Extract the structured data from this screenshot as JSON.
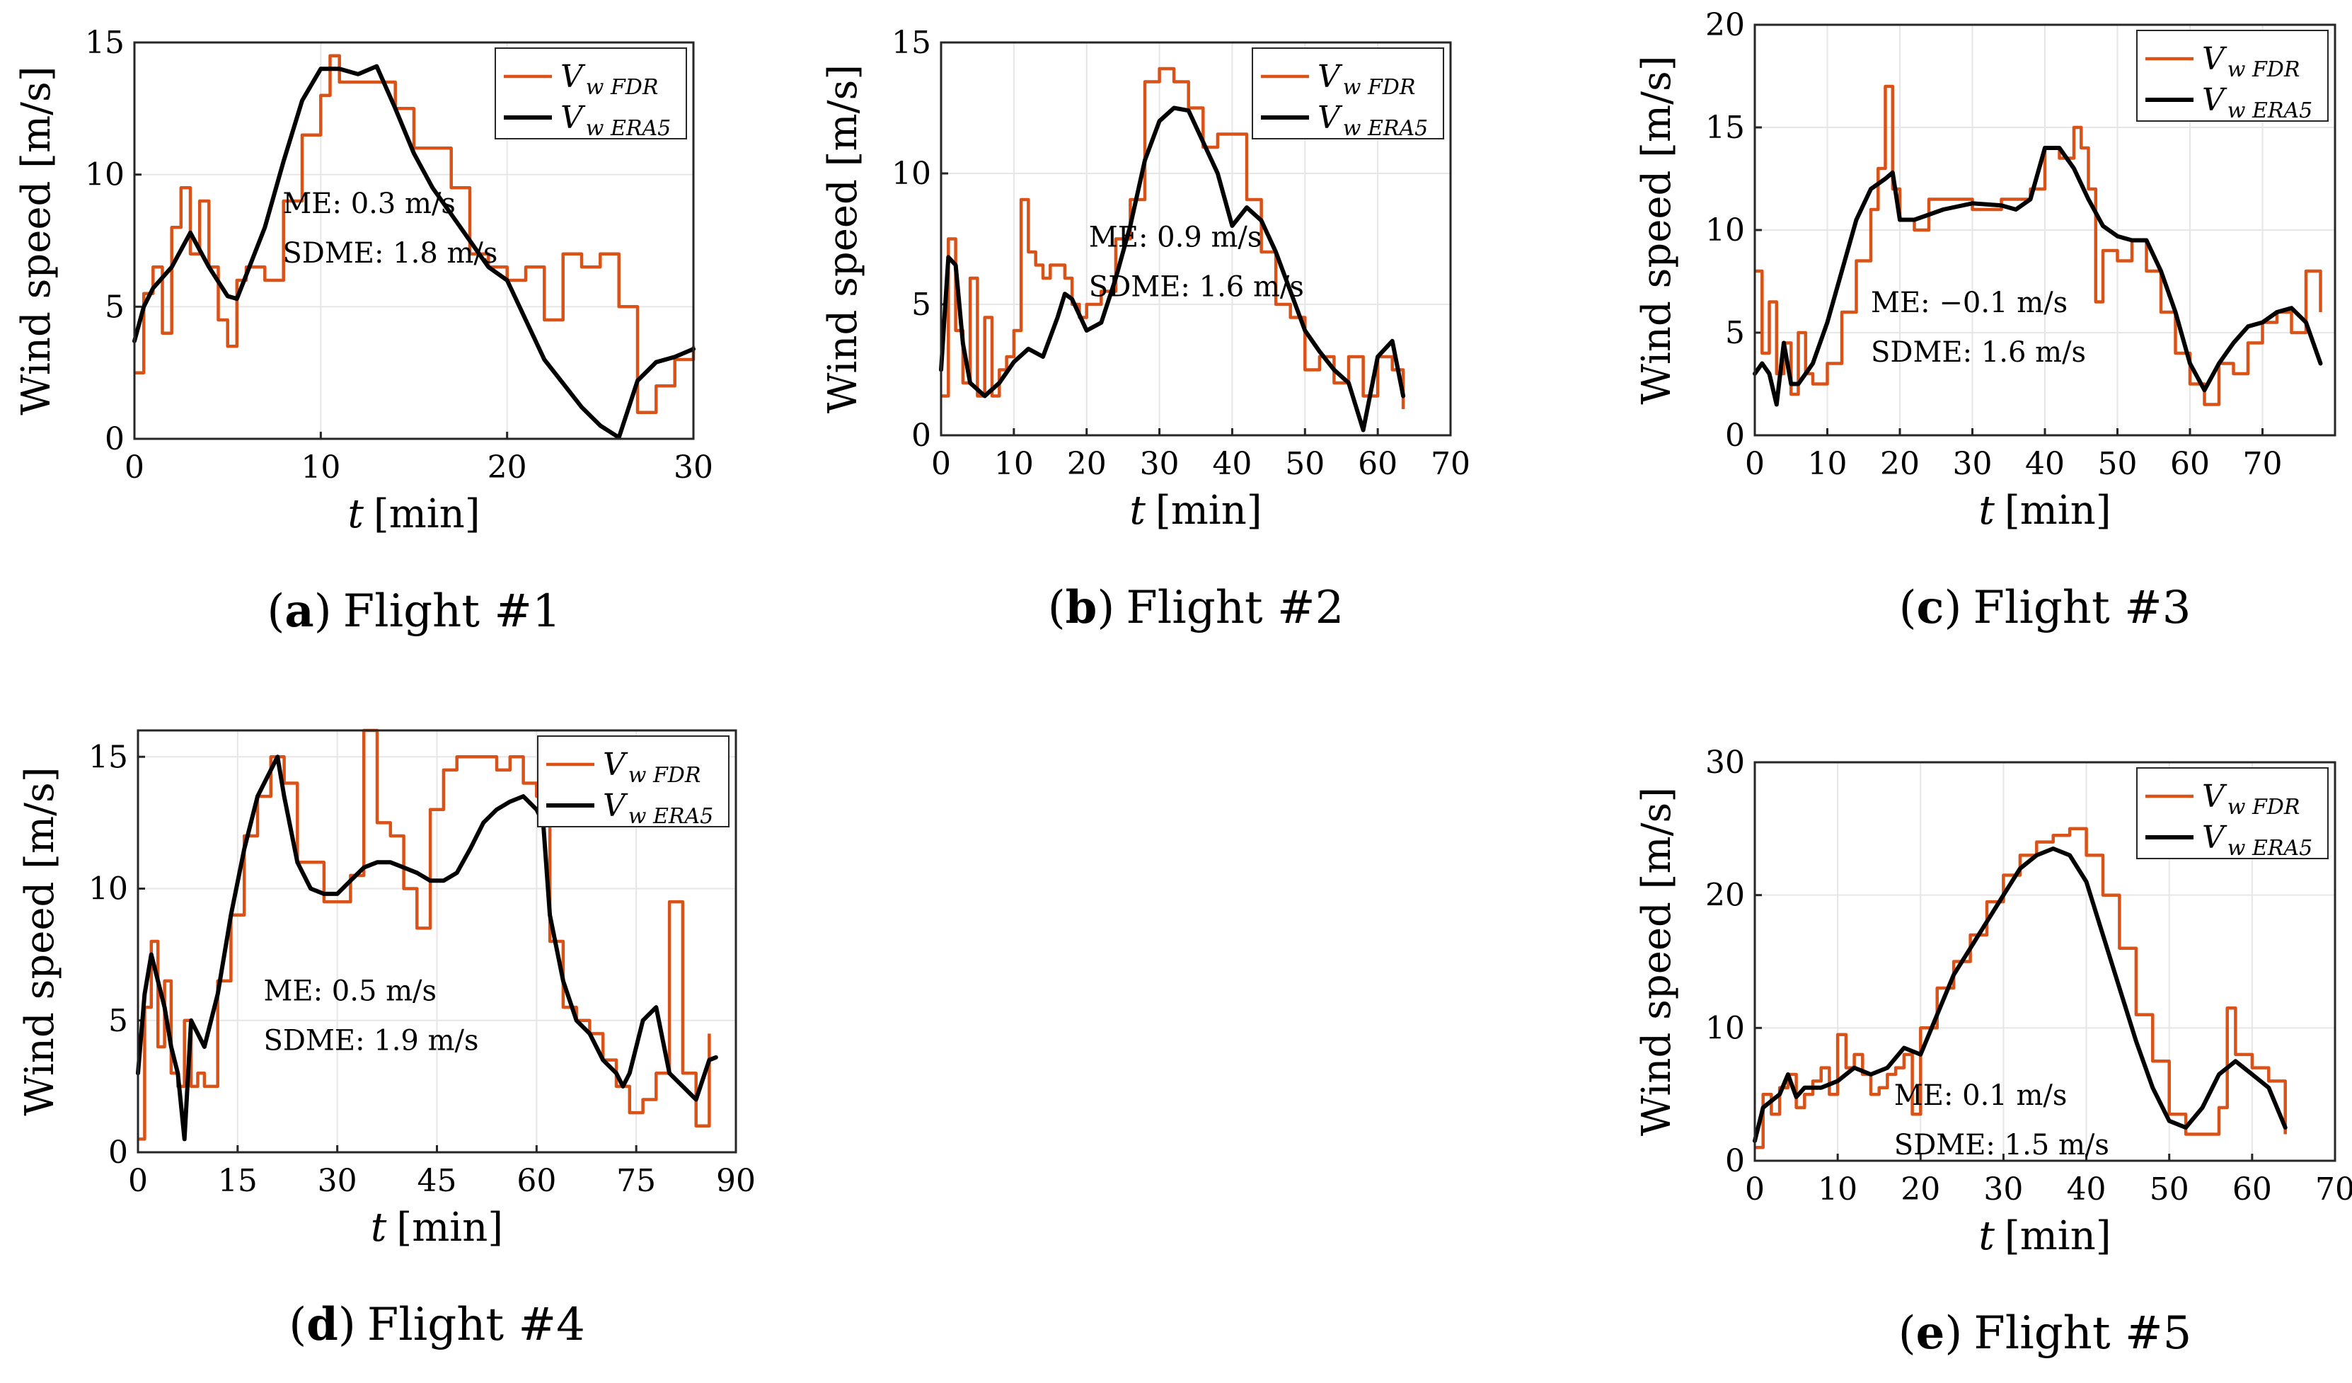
{
  "chart_data": [
    {
      "type": "line",
      "caption_letter": "(a)",
      "caption_text": "Flight #1",
      "xlabel_var": "t",
      "xlabel_unit": "[min]",
      "ylabel": "Wind speed [m/s]",
      "xlim": [
        0,
        30
      ],
      "ylim": [
        0,
        15
      ],
      "xticks": [
        "0",
        "10",
        "20",
        "30"
      ],
      "yticks": [
        "0",
        "5",
        "10",
        "15"
      ],
      "legend": {
        "fdr": "V",
        "fdr_sub": "w FDR",
        "era": "V",
        "era_sub": "w ERA5"
      },
      "stats": {
        "me": "ME: 0.3 m/s",
        "sdme": "SDME: 1.8 m/s"
      },
      "series": [
        {
          "name": "V_w FDR",
          "color": "#D95319",
          "x": [
            0,
            0.5,
            1,
            1.5,
            2,
            2.5,
            3,
            3.5,
            4,
            4.5,
            5,
            5.5,
            6,
            7,
            8,
            9,
            10,
            10.5,
            11,
            12,
            13,
            14,
            15,
            16,
            17,
            18,
            19,
            20,
            21,
            22,
            23,
            24,
            25,
            26,
            27,
            28,
            29,
            30
          ],
          "y": [
            2.5,
            5.5,
            6.5,
            4,
            8,
            9.5,
            7,
            9,
            6.5,
            4.5,
            3.5,
            6,
            6.5,
            6,
            9,
            11.5,
            13,
            14.5,
            13.5,
            13.5,
            13.5,
            12.5,
            11,
            11,
            9.5,
            7,
            6.5,
            6,
            6.5,
            4.5,
            7,
            6.5,
            7,
            5,
            1,
            2,
            3,
            3.5
          ]
        },
        {
          "name": "V_w ERA5",
          "color": "#000000",
          "x": [
            0,
            0.5,
            1,
            2,
            3,
            4,
            5,
            5.5,
            6,
            7,
            8,
            9,
            10,
            11,
            12,
            13,
            14,
            15,
            16,
            17,
            18,
            19,
            20,
            21,
            22,
            23,
            24,
            25,
            26,
            27,
            28,
            29,
            30
          ],
          "y": [
            3.7,
            5,
            5.7,
            6.5,
            7.8,
            6.5,
            5.4,
            5.3,
            6.2,
            8,
            10.5,
            12.8,
            14,
            14,
            13.8,
            14.1,
            12.5,
            10.8,
            9.5,
            8.5,
            7.5,
            6.5,
            6,
            4.5,
            3,
            2.1,
            1.2,
            0.5,
            0.05,
            2.2,
            2.9,
            3.1,
            3.4
          ]
        }
      ]
    },
    {
      "type": "line",
      "caption_letter": "(b)",
      "caption_text": "Flight #2",
      "xlabel_var": "t",
      "xlabel_unit": "[min]",
      "ylabel": "Wind speed [m/s]",
      "xlim": [
        0,
        70
      ],
      "ylim": [
        0,
        15
      ],
      "xticks": [
        "0",
        "10",
        "20",
        "30",
        "40",
        "50",
        "60",
        "70"
      ],
      "yticks": [
        "0",
        "5",
        "10",
        "15"
      ],
      "legend": {
        "fdr": "V",
        "fdr_sub": "w FDR",
        "era": "V",
        "era_sub": "w ERA5"
      },
      "stats": {
        "me": "ME: 0.9 m/s",
        "sdme": "SDME: 1.6 m/s"
      },
      "series": [
        {
          "name": "V_w FDR",
          "color": "#D95319",
          "x": [
            0,
            1,
            2,
            3,
            4,
            5,
            6,
            7,
            8,
            9,
            10,
            11,
            12,
            13,
            14,
            15,
            16,
            17,
            18,
            19,
            20,
            22,
            24,
            26,
            28,
            30,
            32,
            34,
            36,
            38,
            40,
            42,
            44,
            46,
            48,
            50,
            52,
            54,
            56,
            58,
            60,
            62,
            63.5
          ],
          "y": [
            1.5,
            7.5,
            4,
            2,
            6,
            1.5,
            4.5,
            1.5,
            2.5,
            3,
            4,
            9,
            7,
            6.5,
            6,
            6.5,
            6.5,
            6,
            5,
            4.5,
            5,
            5.5,
            7.5,
            9,
            13.5,
            14,
            13.5,
            12.5,
            11,
            11.5,
            11.5,
            9,
            7,
            5,
            4.5,
            2.5,
            3,
            2,
            3,
            1.5,
            3,
            2.5,
            1
          ]
        },
        {
          "name": "V_w ERA5",
          "color": "#000000",
          "x": [
            0,
            1,
            2,
            3,
            4,
            6,
            8,
            10,
            12,
            14,
            16,
            17,
            18,
            20,
            22,
            24,
            26,
            28,
            30,
            32,
            34,
            36,
            38,
            40,
            42,
            44,
            46,
            48,
            50,
            52,
            54,
            56,
            58,
            60,
            62,
            63.5
          ],
          "y": [
            2.5,
            6.8,
            6.5,
            3.5,
            2,
            1.5,
            2,
            2.8,
            3.3,
            3,
            4.5,
            5.4,
            5.2,
            4,
            4.3,
            6,
            8,
            10.5,
            12,
            12.5,
            12.4,
            11.2,
            10,
            8,
            8.7,
            8.2,
            7,
            5.5,
            4,
            3.2,
            2.5,
            2,
            0.2,
            3,
            3.6,
            1.5
          ]
        }
      ]
    },
    {
      "type": "line",
      "caption_letter": "(c)",
      "caption_text": "Flight #3",
      "xlabel_var": "t",
      "xlabel_unit": "[min]",
      "ylabel": "Wind speed [m/s]",
      "xlim": [
        0,
        80
      ],
      "ylim": [
        0,
        20
      ],
      "xticks": [
        "0",
        "10",
        "20",
        "30",
        "40",
        "50",
        "60",
        "70"
      ],
      "yticks": [
        "0",
        "5",
        "10",
        "15",
        "20"
      ],
      "legend": {
        "fdr": "V",
        "fdr_sub": "w FDR",
        "era": "V",
        "era_sub": "w ERA5"
      },
      "stats": {
        "me": "ME: −0.1 m/s",
        "sdme": "SDME: 1.6 m/s"
      },
      "series": [
        {
          "name": "V_w FDR",
          "color": "#D95319",
          "x": [
            0,
            1,
            2,
            3,
            4,
            5,
            6,
            7,
            8,
            10,
            12,
            14,
            16,
            17,
            18,
            19,
            20,
            22,
            24,
            26,
            28,
            30,
            32,
            34,
            36,
            38,
            40,
            42,
            44,
            45,
            46,
            47,
            48,
            50,
            52,
            54,
            56,
            58,
            60,
            62,
            64,
            66,
            68,
            70,
            72,
            74,
            76,
            78
          ],
          "y": [
            8,
            4,
            6.5,
            3,
            4.5,
            2,
            5,
            3,
            2.5,
            3.5,
            6,
            8.5,
            11,
            13,
            17,
            12,
            10.5,
            10,
            11.5,
            11.5,
            11.5,
            11,
            11,
            11.5,
            11.5,
            12,
            14,
            13.5,
            15,
            14,
            12,
            6.5,
            9,
            8.5,
            9.5,
            8,
            6,
            4,
            2.5,
            1.5,
            3.5,
            3,
            4.5,
            5.5,
            6,
            5,
            8,
            6
          ]
        },
        {
          "name": "V_w ERA5",
          "color": "#000000",
          "x": [
            0,
            1,
            2,
            3,
            4,
            5,
            6,
            7,
            8,
            10,
            12,
            14,
            16,
            18,
            19,
            20,
            22,
            26,
            30,
            34,
            36,
            38,
            40,
            42,
            44,
            46,
            48,
            50,
            52,
            54,
            56,
            58,
            60,
            62,
            64,
            66,
            68,
            70,
            72,
            74,
            76,
            78
          ],
          "y": [
            3,
            3.5,
            3,
            1.5,
            4.5,
            2.5,
            2.5,
            3,
            3.5,
            5.5,
            8,
            10.5,
            12,
            12.5,
            12.8,
            10.5,
            10.5,
            11,
            11.3,
            11.2,
            11,
            11.5,
            14,
            14,
            13,
            11.5,
            10.2,
            9.7,
            9.5,
            9.5,
            8,
            6,
            3.5,
            2.2,
            3.5,
            4.5,
            5.3,
            5.5,
            6,
            6.2,
            5.5,
            3.5
          ]
        }
      ]
    },
    {
      "type": "line",
      "caption_letter": "(d)",
      "caption_text": "Flight #4",
      "xlabel_var": "t",
      "xlabel_unit": "[min]",
      "ylabel": "Wind speed [m/s]",
      "xlim": [
        0,
        90
      ],
      "ylim": [
        0,
        16
      ],
      "xticks": [
        "0",
        "15",
        "30",
        "45",
        "60",
        "75",
        "90"
      ],
      "yticks": [
        "0",
        "5",
        "10",
        "15"
      ],
      "legend": {
        "fdr": "V",
        "fdr_sub": "w FDR",
        "era": "V",
        "era_sub": "w ERA5"
      },
      "stats": {
        "me": "ME: 0.5 m/s",
        "sdme": "SDME: 1.9 m/s"
      },
      "series": [
        {
          "name": "V_w FDR",
          "color": "#D95319",
          "x": [
            0,
            1,
            2,
            3,
            4,
            5,
            6,
            7,
            8,
            9,
            10,
            12,
            14,
            16,
            18,
            20,
            22,
            24,
            26,
            28,
            30,
            32,
            34,
            36,
            38,
            40,
            42,
            44,
            46,
            48,
            50,
            52,
            54,
            56,
            58,
            60,
            62,
            64,
            66,
            68,
            70,
            72,
            74,
            76,
            78,
            80,
            82,
            84,
            86
          ],
          "y": [
            0.5,
            5.5,
            8,
            4,
            6.5,
            3,
            2.5,
            5,
            2.5,
            3,
            2.5,
            6.5,
            9,
            12,
            13.5,
            15,
            14,
            11,
            11,
            9.5,
            9.5,
            10.5,
            16,
            12.5,
            12,
            10,
            8.5,
            13,
            14.5,
            15,
            15,
            15,
            14.5,
            15,
            14,
            13.5,
            8,
            5.5,
            5,
            4.5,
            3.5,
            2.5,
            1.5,
            2,
            3,
            9.5,
            3,
            1,
            4.5
          ]
        },
        {
          "name": "V_w ERA5",
          "color": "#000000",
          "x": [
            0,
            1,
            2,
            3,
            4,
            5,
            6,
            7,
            8,
            10,
            12,
            14,
            16,
            18,
            20,
            21,
            22,
            24,
            26,
            28,
            30,
            32,
            34,
            36,
            38,
            40,
            42,
            44,
            46,
            48,
            50,
            52,
            54,
            56,
            58,
            60,
            61,
            62,
            64,
            66,
            68,
            70,
            72,
            73,
            74,
            76,
            78,
            80,
            82,
            84,
            86,
            87
          ],
          "y": [
            3,
            6,
            7.5,
            6.5,
            5.5,
            4,
            3,
            0.5,
            5,
            4,
            6,
            9,
            11.5,
            13.5,
            14.5,
            15,
            13.5,
            11,
            10,
            9.8,
            9.8,
            10.3,
            10.8,
            11,
            11,
            10.8,
            10.6,
            10.3,
            10.3,
            10.6,
            11.5,
            12.5,
            13,
            13.3,
            13.5,
            13,
            12.5,
            9,
            6.5,
            5,
            4.5,
            3.5,
            3,
            2.5,
            3,
            5,
            5.5,
            3,
            2.5,
            2,
            3.5,
            3.6
          ]
        }
      ]
    },
    {
      "type": "line",
      "caption_letter": "(e)",
      "caption_text": "Flight #5",
      "xlabel_var": "t",
      "xlabel_unit": "[min]",
      "ylabel": "Wind speed [m/s]",
      "xlim": [
        0,
        70
      ],
      "ylim": [
        0,
        30
      ],
      "xticks": [
        "0",
        "10",
        "20",
        "30",
        "40",
        "50",
        "60",
        "70"
      ],
      "yticks": [
        "0",
        "10",
        "20",
        "30"
      ],
      "legend": {
        "fdr": "V",
        "fdr_sub": "w FDR",
        "era": "V",
        "era_sub": "w ERA5"
      },
      "stats": {
        "me": "ME: 0.1 m/s",
        "sdme": "SDME: 1.5 m/s"
      },
      "series": [
        {
          "name": "V_w FDR",
          "color": "#D95319",
          "x": [
            0,
            1,
            2,
            3,
            4,
            5,
            6,
            7,
            8,
            9,
            10,
            11,
            12,
            13,
            14,
            15,
            16,
            17,
            18,
            19,
            20,
            22,
            24,
            26,
            28,
            30,
            32,
            34,
            36,
            38,
            40,
            42,
            44,
            46,
            48,
            50,
            52,
            54,
            56,
            57,
            58,
            60,
            62,
            64
          ],
          "y": [
            1,
            5,
            3.5,
            5.5,
            6.5,
            4,
            5,
            6,
            7,
            5,
            9.5,
            7,
            8,
            6.5,
            5,
            5.5,
            6.5,
            7,
            8,
            3.5,
            10,
            13,
            15,
            17,
            19.5,
            21.5,
            23,
            24,
            24.5,
            25,
            23,
            20,
            16,
            11,
            7.5,
            3.5,
            2,
            2,
            4,
            11.5,
            8,
            7,
            6,
            2
          ]
        },
        {
          "name": "V_w ERA5",
          "color": "#000000",
          "x": [
            0,
            1,
            2,
            3,
            4,
            5,
            6,
            8,
            10,
            12,
            14,
            16,
            18,
            20,
            22,
            24,
            26,
            28,
            30,
            32,
            34,
            36,
            38,
            40,
            42,
            44,
            46,
            48,
            50,
            52,
            54,
            56,
            58,
            60,
            62,
            64
          ],
          "y": [
            1.5,
            4,
            4.5,
            5,
            6.5,
            4.8,
            5.5,
            5.5,
            6,
            7,
            6.5,
            7,
            8.5,
            8,
            11,
            14,
            16,
            18,
            20,
            22,
            23,
            23.5,
            23,
            21,
            17,
            13,
            9,
            5.5,
            3,
            2.5,
            4,
            6.5,
            7.5,
            6.5,
            5.5,
            2.5
          ]
        }
      ]
    }
  ]
}
